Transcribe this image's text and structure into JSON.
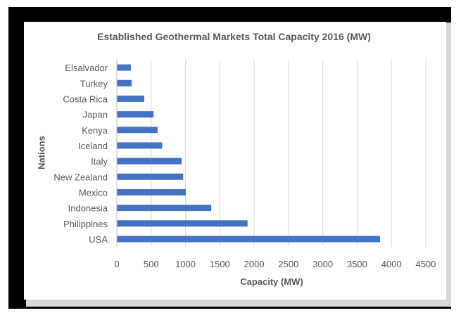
{
  "chart_data": {
    "type": "bar",
    "orientation": "horizontal",
    "title": "Established Geothermal Markets Total Capacity  2016 (MW)",
    "xlabel": "Capacity (MW)",
    "ylabel": "Nations",
    "categories": [
      "Elsalvador",
      "Turkey",
      "Costa Rica",
      "Japan",
      "Kenya",
      "Iceland",
      "Italy",
      "New Zealand",
      "Mexico",
      "Indonesia",
      "Philippines",
      "USA"
    ],
    "values": [
      204,
      216,
      400,
      535,
      594,
      660,
      944,
      966,
      1005,
      1375,
      1904,
      3833
    ],
    "xlim": [
      0,
      4500
    ],
    "xticks": [
      0,
      500,
      1000,
      1500,
      2000,
      2500,
      3000,
      3500,
      4000,
      4500
    ],
    "grid": true,
    "bar_color": "#4472c4"
  }
}
